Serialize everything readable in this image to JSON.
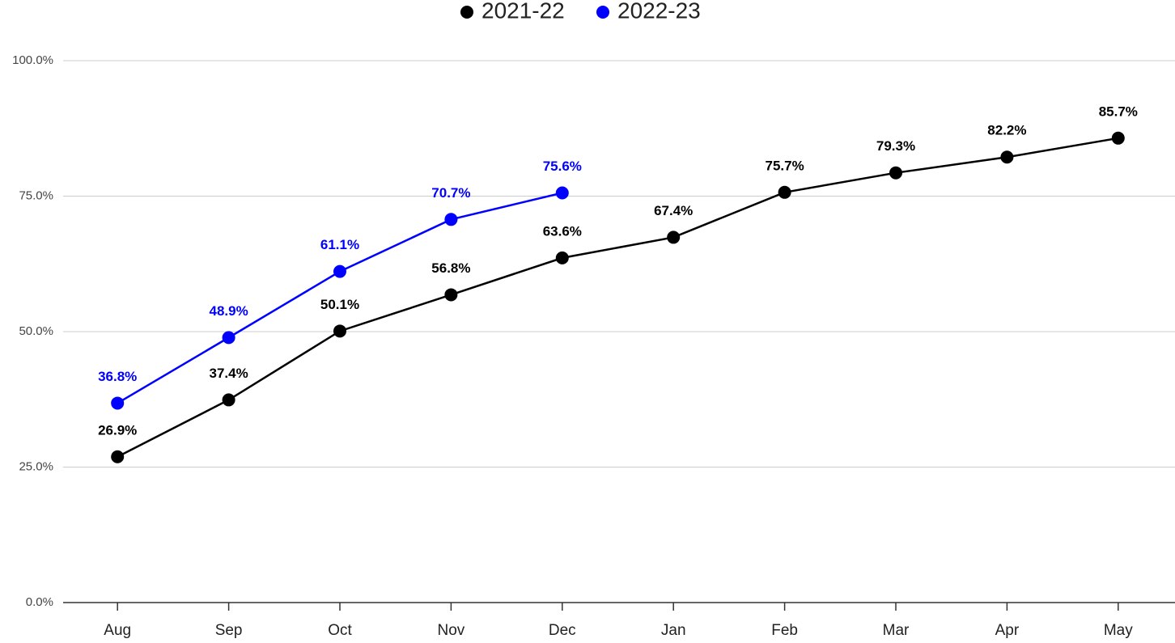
{
  "chart_data": {
    "type": "line",
    "categories": [
      "Aug",
      "Sep",
      "Oct",
      "Nov",
      "Dec",
      "Jan",
      "Feb",
      "Mar",
      "Apr",
      "May"
    ],
    "series": [
      {
        "name": "2021-22",
        "color": "#000000",
        "values": [
          26.9,
          37.4,
          50.1,
          56.8,
          63.6,
          67.4,
          75.7,
          79.3,
          82.2,
          85.7
        ],
        "value_labels": [
          "26.9%",
          "37.4%",
          "50.1%",
          "56.8%",
          "63.6%",
          "67.4%",
          "75.7%",
          "79.3%",
          "82.2%",
          "85.7%"
        ]
      },
      {
        "name": "2022-23",
        "color": "#0000ff",
        "values": [
          36.8,
          48.9,
          61.1,
          70.7,
          75.6,
          null,
          null,
          null,
          null,
          null
        ],
        "value_labels": [
          "36.8%",
          "48.9%",
          "61.1%",
          "70.7%",
          "75.6%",
          null,
          null,
          null,
          null,
          null
        ]
      }
    ],
    "ylim": [
      0,
      100
    ],
    "yticks": [
      {
        "value": 0,
        "label": "0.0%"
      },
      {
        "value": 25,
        "label": "25.0%"
      },
      {
        "value": 50,
        "label": "50.0%"
      },
      {
        "value": 75,
        "label": "75.0%"
      },
      {
        "value": 100,
        "label": "100.0%"
      }
    ],
    "grid": true,
    "legend": "top"
  }
}
